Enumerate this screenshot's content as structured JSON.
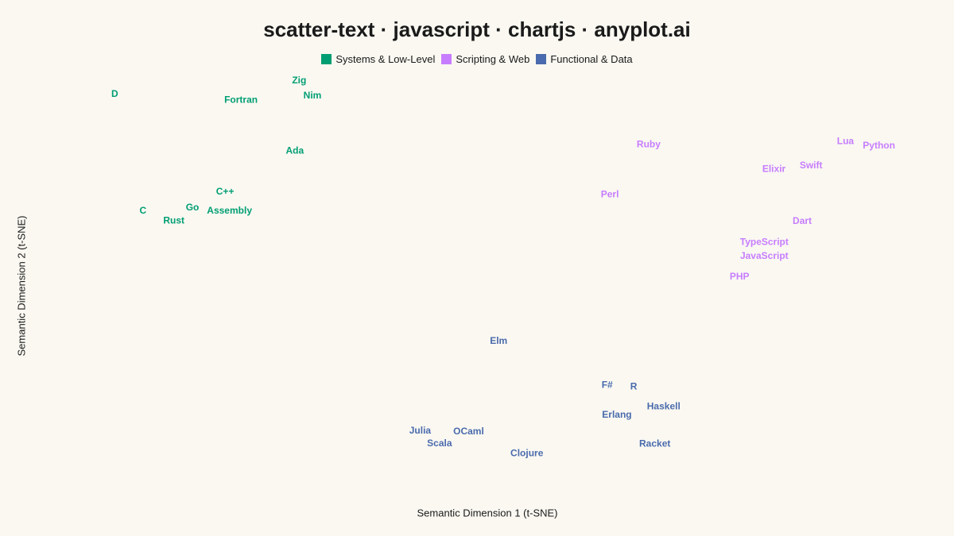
{
  "chart_data": {
    "type": "scatter",
    "title": "scatter-text · javascript · chartjs · anyplot.ai",
    "xlabel": "Semantic Dimension 1 (t-SNE)",
    "ylabel": "Semantic Dimension 2 (t-SNE)",
    "xlim": [
      0,
      100
    ],
    "ylim": [
      0,
      100
    ],
    "grid": false,
    "legend_position": "top",
    "series": [
      {
        "name": "Systems & Low-Level",
        "color": "#009E73",
        "points": [
          {
            "label": "D",
            "x": 7.6,
            "y": 94.8
          },
          {
            "label": "Zig",
            "x": 28.5,
            "y": 98.1
          },
          {
            "label": "Nim",
            "x": 30.0,
            "y": 94.4
          },
          {
            "label": "Fortran",
            "x": 21.9,
            "y": 93.4
          },
          {
            "label": "Ada",
            "x": 28.0,
            "y": 81.0
          },
          {
            "label": "C++",
            "x": 20.1,
            "y": 71.1
          },
          {
            "label": "Go",
            "x": 16.4,
            "y": 67.2
          },
          {
            "label": "C",
            "x": 10.8,
            "y": 66.4
          },
          {
            "label": "Assembly",
            "x": 20.6,
            "y": 66.4
          },
          {
            "label": "Rust",
            "x": 14.3,
            "y": 64.0
          }
        ]
      },
      {
        "name": "Scripting & Web",
        "color": "#C77DFF",
        "points": [
          {
            "label": "Ruby",
            "x": 68.1,
            "y": 82.6
          },
          {
            "label": "Lua",
            "x": 90.4,
            "y": 83.3
          },
          {
            "label": "Python",
            "x": 94.2,
            "y": 82.3
          },
          {
            "label": "Swift",
            "x": 86.5,
            "y": 77.4
          },
          {
            "label": "Elixir",
            "x": 82.3,
            "y": 76.6
          },
          {
            "label": "Perl",
            "x": 63.7,
            "y": 70.4
          },
          {
            "label": "Dart",
            "x": 85.5,
            "y": 63.9
          },
          {
            "label": "TypeScript",
            "x": 81.2,
            "y": 58.8
          },
          {
            "label": "JavaScript",
            "x": 81.2,
            "y": 55.4
          },
          {
            "label": "PHP",
            "x": 78.4,
            "y": 50.4
          }
        ]
      },
      {
        "name": "Functional & Data",
        "color": "#4A6BAD",
        "points": [
          {
            "label": "Elm",
            "x": 51.1,
            "y": 34.8
          },
          {
            "label": "F#",
            "x": 63.4,
            "y": 24.1
          },
          {
            "label": "R",
            "x": 66.4,
            "y": 23.7
          },
          {
            "label": "Haskell",
            "x": 69.8,
            "y": 18.9
          },
          {
            "label": "Erlang",
            "x": 64.5,
            "y": 16.8
          },
          {
            "label": "Julia",
            "x": 42.2,
            "y": 13.0
          },
          {
            "label": "OCaml",
            "x": 47.7,
            "y": 12.8
          },
          {
            "label": "Scala",
            "x": 44.4,
            "y": 9.9
          },
          {
            "label": "Racket",
            "x": 68.8,
            "y": 9.8
          },
          {
            "label": "Clojure",
            "x": 54.3,
            "y": 7.5
          }
        ]
      }
    ]
  }
}
